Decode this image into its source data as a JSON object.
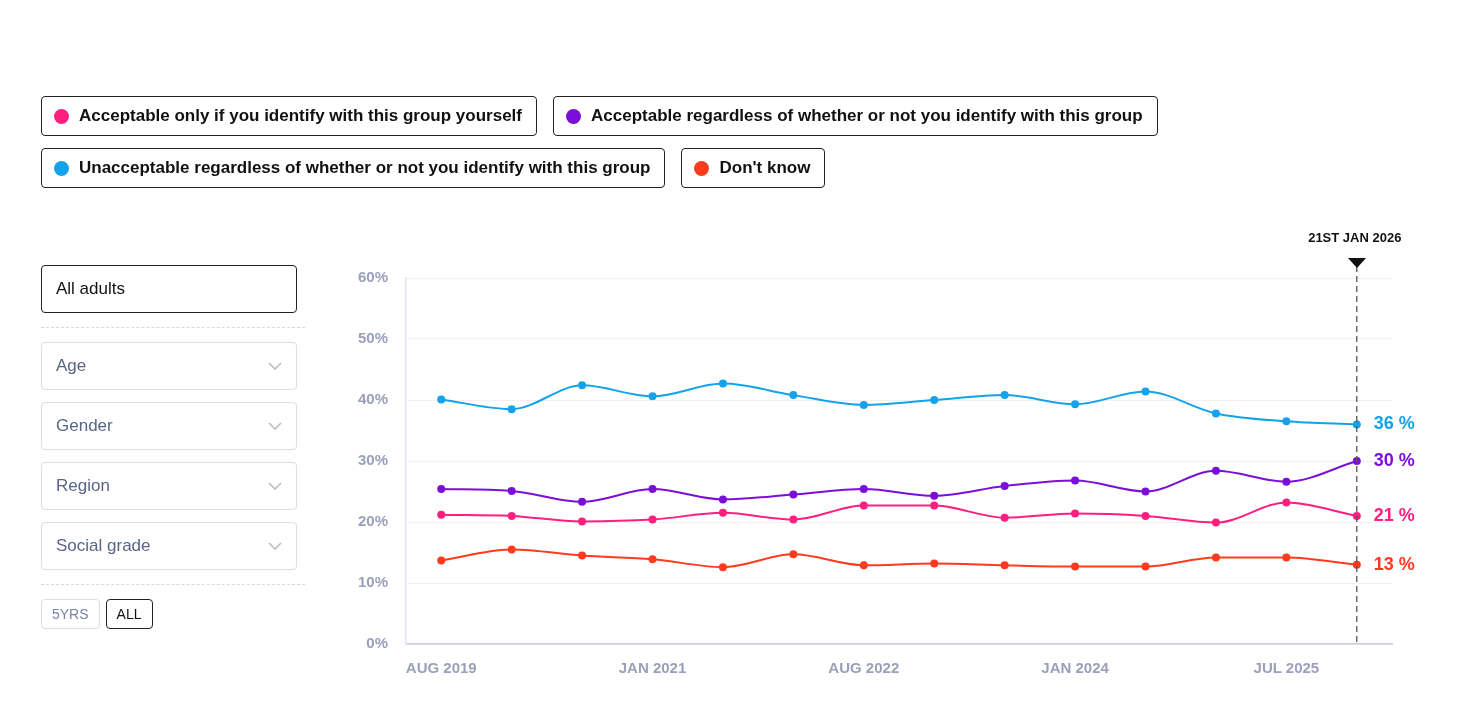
{
  "chart_data": {
    "type": "line",
    "categories": [
      "AUG 2019",
      null,
      null,
      "JAN 2021",
      null,
      null,
      "AUG 2022",
      null,
      null,
      "JAN 2024",
      null,
      null,
      "JUL 2025",
      null
    ],
    "series": [
      {
        "name": "Acceptable only if you identify with this group yourself",
        "color": "#ff1f7f",
        "values": [
          21.2,
          21.0,
          20.1,
          20.4,
          21.5,
          20.4,
          22.7,
          22.7,
          20.7,
          21.4,
          21.0,
          19.9,
          23.2,
          21
        ],
        "value_labels": [
          null,
          null,
          null,
          null,
          null,
          null,
          null,
          null,
          null,
          null,
          null,
          null,
          null,
          "21 %"
        ]
      },
      {
        "name": "Acceptable regardless of whether or not you identify with this group",
        "color": "#7a0fd9",
        "values": [
          25.4,
          25.1,
          23.3,
          25.4,
          23.7,
          24.5,
          25.4,
          24.3,
          25.9,
          26.8,
          25.0,
          28.4,
          26.6,
          30
        ],
        "value_labels": [
          null,
          null,
          null,
          null,
          null,
          null,
          null,
          null,
          null,
          null,
          null,
          null,
          null,
          "30 %"
        ]
      },
      {
        "name": "Unacceptable regardless of whether or not you identify with this group",
        "color": "#12a3ea",
        "values": [
          40.1,
          38.5,
          42.4,
          40.6,
          42.7,
          40.8,
          39.2,
          40.0,
          40.8,
          39.3,
          41.4,
          37.8,
          36.5,
          36
        ],
        "value_labels": [
          null,
          null,
          null,
          null,
          null,
          null,
          null,
          null,
          null,
          null,
          null,
          null,
          null,
          "36 %"
        ]
      },
      {
        "name": "Don't know",
        "color": "#ff3a1f",
        "values": [
          13.7,
          15.5,
          14.5,
          13.9,
          12.6,
          14.7,
          12.9,
          13.2,
          12.9,
          12.7,
          12.7,
          14.2,
          14.2,
          13
        ],
        "value_labels": [
          null,
          null,
          null,
          null,
          null,
          null,
          null,
          null,
          null,
          null,
          null,
          null,
          null,
          "13 %"
        ]
      }
    ],
    "ylim": [
      0,
      60
    ],
    "yticks": [
      {
        "value": 0,
        "label": "0%"
      },
      {
        "value": 10,
        "label": "10%"
      },
      {
        "value": 20,
        "label": "20%"
      },
      {
        "value": 30,
        "label": "30%"
      },
      {
        "value": 40,
        "label": "40%"
      },
      {
        "value": 50,
        "label": "50%"
      },
      {
        "value": 60,
        "label": "60%"
      }
    ],
    "annotations": [
      "21ST JAN 2026",
      "All adults",
      "Age",
      "Gender",
      "Region",
      "Social grade",
      "5YRS",
      "ALL"
    ],
    "grid": "y",
    "legend": "top",
    "marker": "circle",
    "line_style": "solid"
  }
}
